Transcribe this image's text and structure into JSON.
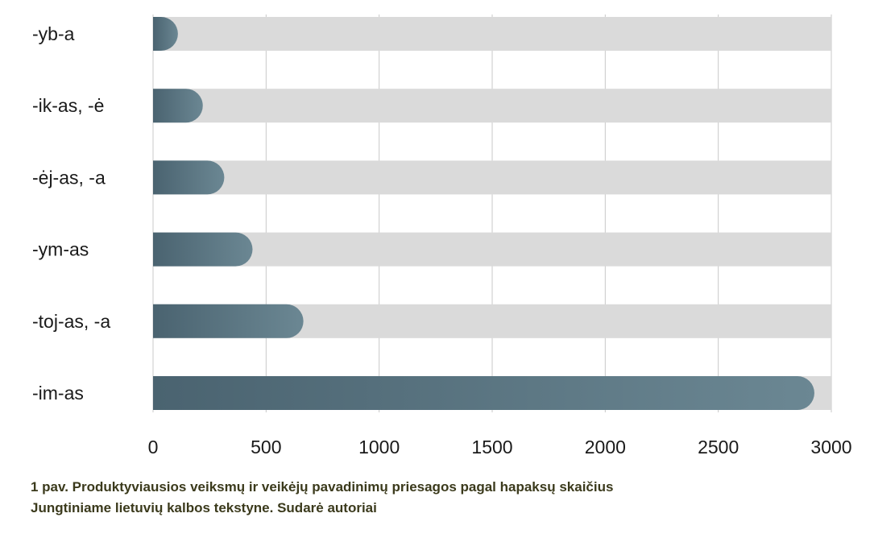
{
  "chart_data": {
    "type": "bar",
    "orientation": "horizontal",
    "categories": [
      "-yb-a",
      "-ik-as, -ė",
      "-ėj-as, -a",
      "-ym-as",
      "-toj-as, -a",
      "-im-as"
    ],
    "values": [
      110,
      220,
      315,
      440,
      665,
      2925
    ],
    "xlim": [
      0,
      3000
    ],
    "xticks": [
      "0",
      "500",
      "1000",
      "1500",
      "2000",
      "2500",
      "3000"
    ],
    "grid": "vertical",
    "title": "",
    "xlabel": "",
    "ylabel": ""
  },
  "caption": {
    "line1": "1 pav. Produktyviausios veiksmų ir veikėjų pavadinimų priesagos pagal hapaksų skaičius",
    "line2": "Jungtiniame lietuvių kalbos tekstyne. Sudarė autoriai"
  },
  "colors": {
    "track": "#dadada",
    "bar_start": "#4a6370",
    "bar_end": "#6b8793",
    "grid": "#c8c8c8"
  }
}
